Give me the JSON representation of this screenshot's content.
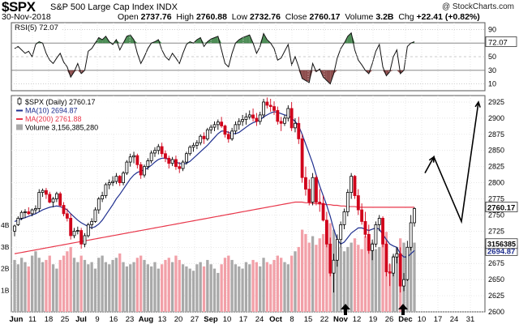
{
  "header": {
    "symbol": "$SPX",
    "name": "S&P 500 Large Cap Index",
    "exchange": "INDX",
    "date": "30-Nov-2018",
    "open_label": "Open",
    "open": "2737.76",
    "high_label": "High",
    "high": "2760.88",
    "low_label": "Low",
    "low": "2732.76",
    "close_label": "Close",
    "close": "2760.17",
    "volume_label": "Volume",
    "volume": "3.2B",
    "chg_label": "Chg",
    "chg": "+22.41 (+0.82%)",
    "copyright": "@ StockCharts.com"
  },
  "rsi_panel": {
    "title": "RSI(5) 72.07",
    "ticks": [
      90,
      70,
      50,
      30,
      10
    ],
    "value_tag": "72.07",
    "overbought": 70,
    "oversold": 30
  },
  "price_panel": {
    "legend": [
      "$SPX (Daily) 2760.17",
      "MA(10) 2694.87",
      "MA(200) 2761.88",
      "Volume 3,156,385,280"
    ],
    "y_ticks": [
      2925,
      2900,
      2875,
      2850,
      2825,
      2800,
      2775,
      2750,
      2725,
      2700,
      2675,
      2650,
      2625,
      2600
    ],
    "volume_ticks": [
      "4B",
      "3B",
      "2B",
      "1B"
    ],
    "close_tag": "2760.17",
    "ma200_tag": "2761.88",
    "ma10_tag": "2694.87",
    "volume_tag": "3156385",
    "x_labels": [
      "Jun",
      "11",
      "18",
      "25",
      "Jul",
      "9",
      "16",
      "23",
      "Aug",
      "13",
      "20",
      "27",
      "Sep",
      "10",
      "17",
      "24",
      "Oct",
      "8",
      "15",
      "22",
      "Nov",
      "12",
      "19",
      "26",
      "Dec",
      "10",
      "17",
      "24",
      "31"
    ]
  },
  "colors": {
    "up": "#000000",
    "down": "#d0021b",
    "ma10": "#1f2f8f",
    "ma200": "#e8364a",
    "rsi_above": "#2f7a3a",
    "rsi_below": "#7a2f2f",
    "volume_up": "#a9a9a9",
    "volume_down": "#f2a0a8"
  },
  "chart_data": {
    "type": "candlestick",
    "title": "$SPX S&P 500 Large Cap Index INDX",
    "date_range": [
      "2018-06-01",
      "2018-11-30"
    ],
    "ylim": [
      2600,
      2935
    ],
    "rsi_ylim": [
      0,
      100
    ],
    "candles": [
      [
        2725,
        2735,
        2717,
        2733
      ],
      [
        2735,
        2748,
        2733,
        2745
      ],
      [
        2745,
        2757,
        2742,
        2754
      ],
      [
        2754,
        2759,
        2745,
        2755
      ],
      [
        2755,
        2762,
        2750,
        2752
      ],
      [
        2752,
        2760,
        2748,
        2758
      ],
      [
        2758,
        2765,
        2752,
        2760
      ],
      [
        2760,
        2790,
        2755,
        2785
      ],
      [
        2785,
        2791,
        2778,
        2788
      ],
      [
        2788,
        2792,
        2775,
        2782
      ],
      [
        2782,
        2786,
        2768,
        2770
      ],
      [
        2770,
        2778,
        2762,
        2775
      ],
      [
        2775,
        2786,
        2770,
        2783
      ],
      [
        2783,
        2786,
        2762,
        2765
      ],
      [
        2765,
        2770,
        2748,
        2752
      ],
      [
        2752,
        2760,
        2740,
        2745
      ],
      [
        2745,
        2752,
        2712,
        2718
      ],
      [
        2718,
        2730,
        2714,
        2725
      ],
      [
        2725,
        2732,
        2720,
        2726
      ],
      [
        2726,
        2730,
        2698,
        2705
      ],
      [
        2705,
        2722,
        2700,
        2718
      ],
      [
        2718,
        2738,
        2715,
        2735
      ],
      [
        2735,
        2745,
        2728,
        2740
      ],
      [
        2740,
        2762,
        2738,
        2758
      ],
      [
        2758,
        2778,
        2752,
        2775
      ],
      [
        2775,
        2786,
        2770,
        2780
      ],
      [
        2780,
        2800,
        2776,
        2797
      ],
      [
        2797,
        2805,
        2790,
        2800
      ],
      [
        2800,
        2810,
        2795,
        2802
      ],
      [
        2802,
        2815,
        2798,
        2810
      ],
      [
        2810,
        2812,
        2795,
        2800
      ],
      [
        2800,
        2818,
        2796,
        2815
      ],
      [
        2815,
        2835,
        2812,
        2832
      ],
      [
        2832,
        2845,
        2825,
        2840
      ],
      [
        2840,
        2848,
        2830,
        2842
      ],
      [
        2842,
        2845,
        2822,
        2828
      ],
      [
        2828,
        2832,
        2806,
        2812
      ],
      [
        2812,
        2828,
        2808,
        2825
      ],
      [
        2825,
        2838,
        2820,
        2834
      ],
      [
        2834,
        2850,
        2830,
        2846
      ],
      [
        2846,
        2855,
        2840,
        2850
      ],
      [
        2850,
        2860,
        2844,
        2856
      ],
      [
        2856,
        2862,
        2840,
        2845
      ],
      [
        2845,
        2850,
        2832,
        2838
      ],
      [
        2838,
        2842,
        2822,
        2830
      ],
      [
        2830,
        2840,
        2826,
        2836
      ],
      [
        2836,
        2842,
        2820,
        2825
      ],
      [
        2825,
        2832,
        2815,
        2822
      ],
      [
        2822,
        2835,
        2818,
        2832
      ],
      [
        2832,
        2848,
        2828,
        2845
      ],
      [
        2845,
        2858,
        2842,
        2855
      ],
      [
        2855,
        2862,
        2848,
        2858
      ],
      [
        2858,
        2866,
        2852,
        2862
      ],
      [
        2862,
        2875,
        2858,
        2872
      ],
      [
        2872,
        2878,
        2860,
        2868
      ],
      [
        2868,
        2885,
        2865,
        2882
      ],
      [
        2882,
        2890,
        2876,
        2886
      ],
      [
        2886,
        2895,
        2880,
        2890
      ],
      [
        2890,
        2898,
        2882,
        2894
      ],
      [
        2894,
        2902,
        2885,
        2888
      ],
      [
        2888,
        2890,
        2870,
        2875
      ],
      [
        2875,
        2880,
        2862,
        2868
      ],
      [
        2868,
        2885,
        2865,
        2880
      ],
      [
        2880,
        2895,
        2875,
        2890
      ],
      [
        2890,
        2900,
        2882,
        2895
      ],
      [
        2895,
        2905,
        2888,
        2898
      ],
      [
        2898,
        2908,
        2890,
        2902
      ],
      [
        2902,
        2912,
        2898,
        2905
      ],
      [
        2905,
        2915,
        2895,
        2900
      ],
      [
        2900,
        2908,
        2888,
        2895
      ],
      [
        2895,
        2910,
        2890,
        2905
      ],
      [
        2905,
        2930,
        2900,
        2925
      ],
      [
        2925,
        2932,
        2915,
        2920
      ],
      [
        2920,
        2930,
        2910,
        2918
      ],
      [
        2918,
        2926,
        2905,
        2912
      ],
      [
        2912,
        2918,
        2890,
        2895
      ],
      [
        2895,
        2902,
        2880,
        2892
      ],
      [
        2892,
        2905,
        2888,
        2900
      ],
      [
        2900,
        2920,
        2895,
        2915
      ],
      [
        2915,
        2925,
        2880,
        2885
      ],
      [
        2885,
        2900,
        2878,
        2892
      ],
      [
        2892,
        2902,
        2860,
        2868
      ],
      [
        2868,
        2875,
        2800,
        2808
      ],
      [
        2808,
        2825,
        2780,
        2790
      ],
      [
        2790,
        2805,
        2765,
        2770
      ],
      [
        2770,
        2815,
        2765,
        2808
      ],
      [
        2808,
        2812,
        2765,
        2770
      ],
      [
        2770,
        2790,
        2755,
        2768
      ],
      [
        2768,
        2780,
        2740,
        2742
      ],
      [
        2742,
        2755,
        2700,
        2705
      ],
      [
        2705,
        2715,
        2655,
        2660
      ],
      [
        2660,
        2690,
        2630,
        2680
      ],
      [
        2680,
        2720,
        2670,
        2712
      ],
      [
        2712,
        2740,
        2700,
        2735
      ],
      [
        2735,
        2760,
        2728,
        2755
      ],
      [
        2755,
        2790,
        2748,
        2785
      ],
      [
        2785,
        2815,
        2775,
        2810
      ],
      [
        2810,
        2812,
        2775,
        2780
      ],
      [
        2780,
        2790,
        2750,
        2758
      ],
      [
        2758,
        2768,
        2735,
        2740
      ],
      [
        2740,
        2755,
        2715,
        2720
      ],
      [
        2720,
        2735,
        2690,
        2695
      ],
      [
        2695,
        2712,
        2680,
        2705
      ],
      [
        2705,
        2740,
        2700,
        2735
      ],
      [
        2735,
        2750,
        2725,
        2745
      ],
      [
        2745,
        2748,
        2700,
        2705
      ],
      [
        2705,
        2710,
        2655,
        2662
      ],
      [
        2662,
        2675,
        2640,
        2660
      ],
      [
        2660,
        2690,
        2655,
        2685
      ],
      [
        2685,
        2700,
        2675,
        2690
      ],
      [
        2690,
        2700,
        2630,
        2640
      ],
      [
        2640,
        2660,
        2632,
        2650
      ],
      [
        2650,
        2710,
        2648,
        2700
      ],
      [
        2700,
        2750,
        2695,
        2738
      ],
      [
        2738,
        2762,
        2732,
        2760
      ]
    ],
    "rsi": [
      62,
      65,
      60,
      55,
      58,
      50,
      68,
      72,
      70,
      55,
      45,
      40,
      48,
      55,
      42,
      35,
      20,
      28,
      40,
      25,
      30,
      58,
      62,
      70,
      78,
      75,
      80,
      72,
      68,
      75,
      60,
      70,
      80,
      82,
      75,
      55,
      40,
      50,
      62,
      70,
      72,
      75,
      60,
      50,
      45,
      55,
      48,
      40,
      55,
      68,
      72,
      70,
      75,
      78,
      65,
      72,
      76,
      78,
      80,
      60,
      40,
      35,
      55,
      70,
      75,
      78,
      80,
      82,
      70,
      55,
      65,
      84,
      75,
      70,
      62,
      45,
      48,
      58,
      68,
      38,
      50,
      35,
      18,
      15,
      12,
      40,
      28,
      32,
      20,
      15,
      10,
      25,
      48,
      62,
      70,
      80,
      85,
      60,
      45,
      38,
      30,
      25,
      40,
      58,
      68,
      35,
      22,
      28,
      50,
      60,
      25,
      30,
      65,
      70,
      72
    ],
    "ma10": [
      2740,
      2742,
      2744,
      2746,
      2748,
      2750,
      2752,
      2755,
      2758,
      2760,
      2762,
      2763,
      2764,
      2763,
      2761,
      2758,
      2752,
      2747,
      2742,
      2738,
      2735,
      2732,
      2730,
      2732,
      2736,
      2742,
      2750,
      2758,
      2766,
      2775,
      2782,
      2790,
      2798,
      2806,
      2812,
      2816,
      2818,
      2820,
      2823,
      2827,
      2832,
      2836,
      2838,
      2838,
      2836,
      2834,
      2832,
      2830,
      2829,
      2830,
      2833,
      2838,
      2843,
      2848,
      2853,
      2858,
      2864,
      2870,
      2876,
      2880,
      2880,
      2878,
      2876,
      2876,
      2878,
      2882,
      2886,
      2890,
      2893,
      2895,
      2897,
      2902,
      2905,
      2908,
      2910,
      2909,
      2907,
      2905,
      2904,
      2900,
      2895,
      2888,
      2875,
      2860,
      2845,
      2830,
      2812,
      2795,
      2780,
      2765,
      2748,
      2728,
      2712,
      2705,
      2708,
      2715,
      2722,
      2726,
      2730,
      2730,
      2728,
      2726,
      2728,
      2730,
      2728,
      2720,
      2712,
      2705,
      2702,
      2700,
      2690,
      2685,
      2685,
      2690,
      2695
    ],
    "ma200": [
      2690,
      2691,
      2692,
      2693,
      2694,
      2695,
      2696,
      2697,
      2698,
      2699,
      2700,
      2701,
      2702,
      2703,
      2704,
      2705,
      2706,
      2707,
      2708,
      2709,
      2710,
      2711,
      2712,
      2713,
      2714,
      2715,
      2716,
      2717,
      2718,
      2719,
      2720,
      2721,
      2722,
      2723,
      2724,
      2725,
      2726,
      2727,
      2728,
      2729,
      2730,
      2731,
      2732,
      2733,
      2734,
      2735,
      2736,
      2737,
      2738,
      2739,
      2740,
      2741,
      2742,
      2743,
      2744,
      2745,
      2746,
      2747,
      2748,
      2749,
      2750,
      2751,
      2752,
      2753,
      2754,
      2755,
      2756,
      2757,
      2758,
      2759,
      2760,
      2761,
      2762,
      2763,
      2764,
      2765,
      2766,
      2767,
      2768,
      2769,
      2770,
      2770,
      2770,
      2769,
      2769,
      2768,
      2768,
      2767,
      2767,
      2766,
      2766,
      2765,
      2765,
      2764,
      2764,
      2763,
      2763,
      2763,
      2762,
      2762,
      2762,
      2762,
      2762,
      2762,
      2762,
      2762,
      2762,
      2762,
      2762,
      2762,
      2762,
      2762,
      2762,
      2762,
      2762
    ],
    "volume": [
      2.4,
      2.2,
      2.5,
      2.3,
      2.1,
      2.6,
      2.8,
      2.5,
      2.3,
      2.4,
      2.6,
      2.2,
      2.0,
      2.4,
      2.6,
      2.8,
      3.0,
      2.5,
      2.3,
      2.6,
      2.4,
      2.2,
      2.3,
      2.0,
      2.5,
      2.6,
      2.3,
      2.2,
      2.4,
      2.5,
      2.7,
      2.3,
      2.1,
      2.2,
      2.3,
      2.5,
      2.6,
      2.4,
      2.2,
      2.1,
      2.3,
      2.0,
      2.2,
      2.4,
      2.5,
      2.3,
      2.6,
      2.4,
      2.2,
      2.1,
      2.0,
      1.9,
      2.2,
      2.3,
      2.1,
      2.4,
      2.2,
      2.0,
      1.8,
      2.2,
      2.5,
      2.6,
      2.4,
      2.2,
      2.1,
      2.0,
      2.3,
      2.2,
      2.4,
      2.3,
      2.1,
      2.5,
      2.3,
      2.2,
      2.4,
      2.6,
      2.5,
      2.3,
      2.2,
      2.6,
      2.8,
      3.0,
      3.8,
      3.6,
      3.2,
      3.5,
      3.1,
      3.4,
      3.6,
      3.9,
      4.1,
      3.8,
      3.2,
      3.0,
      2.8,
      3.0,
      3.2,
      3.4,
      3.1,
      2.9,
      3.5,
      3.6,
      3.2,
      2.9,
      3.0,
      3.6,
      3.7,
      2.2,
      2.6,
      3.0,
      3.4,
      3.2,
      2.8,
      3.0,
      3.2
    ]
  }
}
